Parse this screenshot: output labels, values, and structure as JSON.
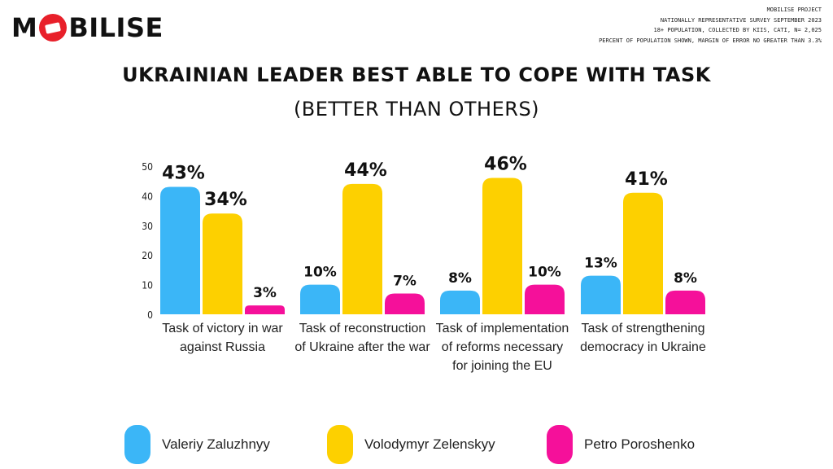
{
  "brand": {
    "logo_text": "MOBILISE"
  },
  "survey_info": [
    "MOBILISE PROJECT",
    "NATIONALLY REPRESENTATIVE SURVEY SEPTEMBER 2023",
    "18+ POPULATION, COLLECTED BY KIIS, CATI, N= 2,025",
    "PERCENT OF POPULATION SHOWN, MARGIN OF ERROR NO GREATER THAN 3.3%"
  ],
  "chart_data": {
    "type": "bar",
    "title": "UKRAINIAN LEADER BEST ABLE TO COPE WITH TASK",
    "subtitle": "(BETTER THAN OTHERS)",
    "categories": [
      "Task of victory in war against Russia",
      "Task of reconstruction of Ukraine after the war",
      "Task of implementation of reforms necessary for joining the EU",
      "Task of strengthening democracy in Ukraine"
    ],
    "series": [
      {
        "name": "Valeriy Zaluzhnyy",
        "color": "#3bb6f7",
        "values": [
          43,
          10,
          8,
          13
        ]
      },
      {
        "name": "Volodymyr Zelenskyy",
        "color": "#fdd000",
        "values": [
          34,
          44,
          46,
          41
        ]
      },
      {
        "name": "Petro Poroshenko",
        "color": "#f5109a",
        "values": [
          3,
          7,
          10,
          8
        ]
      }
    ],
    "value_suffix": "%",
    "ylim": [
      0,
      50
    ],
    "yticks": [
      0,
      10,
      20,
      30,
      40,
      50
    ],
    "grid": false,
    "legend": "bottom"
  }
}
